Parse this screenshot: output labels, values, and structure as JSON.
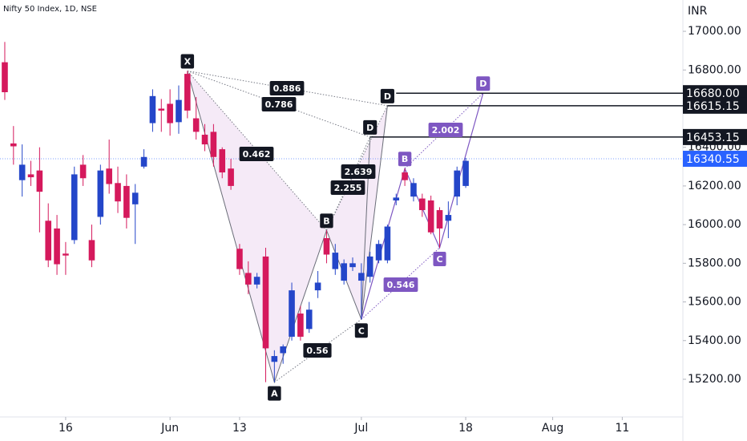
{
  "chart_data": {
    "type": "candlestick",
    "title": "Nifty 50 Index, 1D, NSE",
    "y_axis_label": "INR",
    "xlim": [
      -0.55,
      77.97
    ],
    "xticks": [
      {
        "value": 7,
        "label": "16"
      },
      {
        "value": 19,
        "label": "Jun"
      },
      {
        "value": 27,
        "label": "13"
      },
      {
        "value": 41,
        "label": "Jul"
      },
      {
        "value": 53,
        "label": "18"
      },
      {
        "value": 63,
        "label": "Aug"
      },
      {
        "value": 71,
        "label": "11"
      }
    ],
    "ylim": [
      15005,
      17162
    ],
    "yticks": [
      {
        "value": 15200,
        "label": "15200.00"
      },
      {
        "value": 15400,
        "label": "15400.00"
      },
      {
        "value": 15600,
        "label": "15600.00"
      },
      {
        "value": 15800,
        "label": "15800.00"
      },
      {
        "value": 16000,
        "label": "16000.00"
      },
      {
        "value": 16200,
        "label": "16200.00"
      },
      {
        "value": 16400,
        "label": "16400.00"
      },
      {
        "value": 16800,
        "label": "16800.00"
      },
      {
        "value": 17000,
        "label": "17000.00"
      }
    ],
    "up_color": "#2446c9",
    "down_color": "#d5195c",
    "series": [
      {
        "open": [
          16840,
          16420,
          16230,
          16260,
          16280,
          16020,
          15980,
          15850,
          15920,
          16310,
          15920,
          16040,
          16290,
          16215,
          16200,
          16105,
          16300,
          16525,
          16600,
          16625,
          16530,
          16780,
          16550,
          16465,
          16480,
          16390,
          16290,
          15875,
          15750,
          15690,
          15835,
          15290,
          15335,
          15420,
          15540,
          15460,
          15660,
          15930,
          15770,
          15710,
          15780,
          15710,
          15730,
          15815,
          15815,
          16125,
          16270,
          16145,
          16135,
          16125,
          16075,
          16020,
          16145,
          16200
        ],
        "high": [
          16945,
          16510,
          16415,
          16330,
          16400,
          16110,
          16050,
          15910,
          16300,
          16360,
          16000,
          16310,
          16440,
          16300,
          16260,
          16210,
          16390,
          16700,
          16650,
          16700,
          16720,
          16795,
          16660,
          16520,
          16520,
          16400,
          16340,
          15900,
          15810,
          15750,
          15880,
          15350,
          15380,
          15700,
          15580,
          15600,
          15760,
          15970,
          15900,
          15820,
          15830,
          15800,
          15860,
          15920,
          16000,
          16160,
          16290,
          16240,
          16160,
          16150,
          16090,
          16120,
          16300,
          16345
        ],
        "low": [
          16645,
          16310,
          16145,
          16200,
          15960,
          15780,
          15740,
          15740,
          15900,
          16200,
          15780,
          16000,
          16160,
          16060,
          15980,
          15900,
          16290,
          16480,
          16480,
          16460,
          16470,
          16550,
          16440,
          16380,
          16300,
          16240,
          16180,
          15740,
          15640,
          15670,
          15185,
          15185,
          15280,
          15400,
          15400,
          15440,
          15620,
          15800,
          15740,
          15690,
          15760,
          15510,
          15700,
          15800,
          15800,
          16100,
          16200,
          16120,
          16040,
          15950,
          15880,
          15930,
          16100,
          16190
        ],
        "close": [
          16685,
          16405,
          16310,
          16245,
          16170,
          15815,
          15795,
          15840,
          16260,
          16240,
          15815,
          16280,
          16210,
          16120,
          16035,
          16165,
          16350,
          16665,
          16590,
          16525,
          16645,
          16590,
          16480,
          16415,
          16350,
          16270,
          16200,
          15770,
          15690,
          15730,
          15360,
          15320,
          15370,
          15660,
          15420,
          15560,
          15700,
          15845,
          15855,
          15800,
          15800,
          15750,
          15835,
          15900,
          15990,
          16140,
          16230,
          16215,
          16075,
          15960,
          15980,
          16050,
          16280,
          16330
        ]
      }
    ],
    "patterns": [
      {
        "color": "#131722",
        "fill": "#f3e5f5",
        "points": [
          {
            "label": "X",
            "x": 21,
            "y": 16795
          },
          {
            "label": "A",
            "x": 31,
            "y": 15185
          },
          {
            "label": "B",
            "x": 37,
            "y": 15970
          },
          {
            "label": "C",
            "x": 41,
            "y": 15510
          },
          {
            "label": "D",
            "x": 44,
            "y": 16615.15
          },
          {
            "label": "D",
            "x": 42,
            "y": 16453.15
          }
        ],
        "ratios": [
          "0.462",
          "0.886",
          "0.786",
          "2.639",
          "2.255",
          "0.56"
        ]
      },
      {
        "color": "#7e57c2",
        "points": [
          {
            "x": 41,
            "y": 15510
          },
          {
            "label": "B",
            "x": 46,
            "y": 16290
          },
          {
            "label": "C",
            "x": 50,
            "y": 15880
          },
          {
            "label": "D",
            "x": 55,
            "y": 16680
          }
        ],
        "ratios": [
          "2.002",
          "0.546"
        ]
      }
    ],
    "levels": [
      {
        "value": 16680,
        "label": "16680.00",
        "x": 45
      },
      {
        "value": 16615.15,
        "label": "16615.15",
        "x": 44
      },
      {
        "value": 16453.15,
        "label": "16453.15",
        "x": 42
      }
    ],
    "last_price": {
      "value": 16340.55,
      "label": "16340.55",
      "color": "#2962ff"
    }
  }
}
